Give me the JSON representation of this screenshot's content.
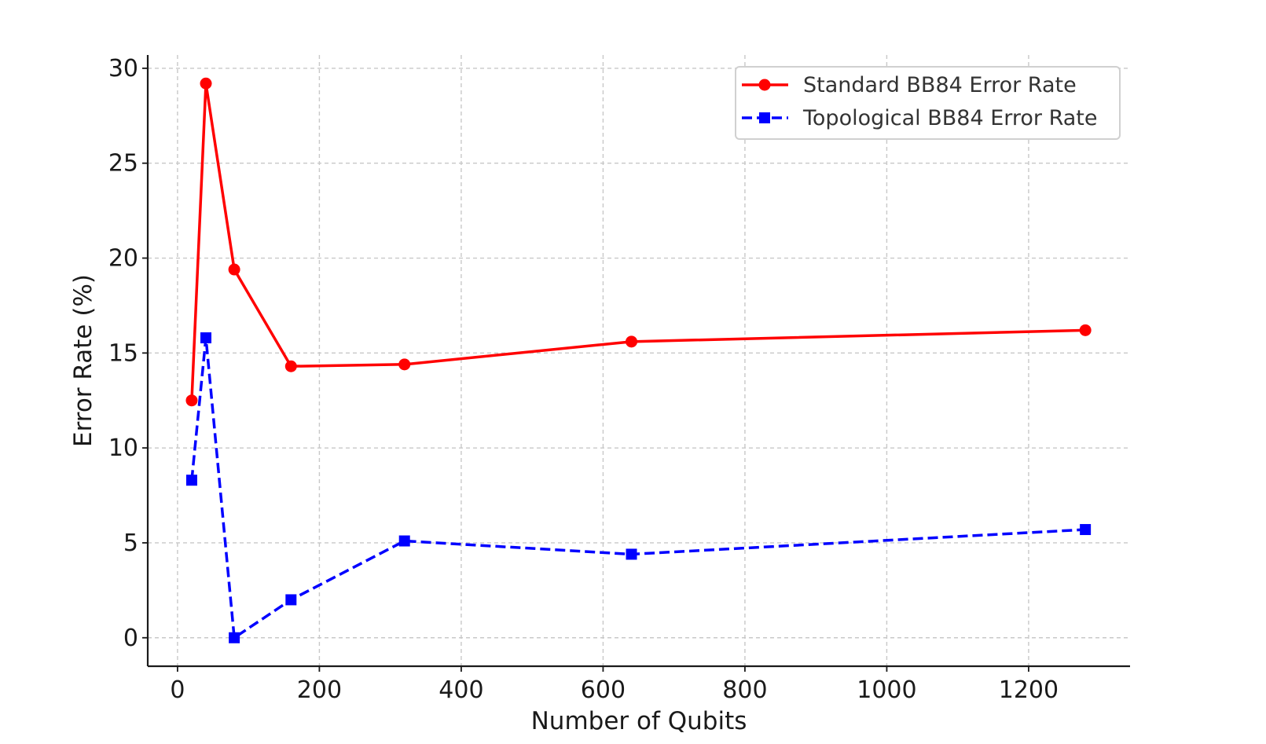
{
  "chart_data": {
    "type": "line",
    "title": "",
    "xlabel": "Number of Qubits",
    "ylabel": "Error Rate (%)",
    "xlim": [
      -42,
      1343
    ],
    "ylim": [
      -1.5,
      30.7
    ],
    "xticks": [
      0,
      200,
      400,
      600,
      800,
      1000,
      1200
    ],
    "yticks": [
      0,
      5,
      10,
      15,
      20,
      25,
      30
    ],
    "grid": true,
    "legend_position": "top-right",
    "series": [
      {
        "name": "Standard BB84 Error Rate",
        "color": "#ff0000",
        "line_style": "solid",
        "marker": "circle",
        "x": [
          20,
          40,
          80,
          160,
          320,
          640,
          1280
        ],
        "y": [
          12.5,
          29.2,
          19.4,
          14.3,
          14.4,
          15.6,
          16.2
        ]
      },
      {
        "name": "Topological BB84 Error Rate",
        "color": "#0000ff",
        "line_style": "dashed",
        "marker": "square",
        "x": [
          20,
          40,
          80,
          160,
          320,
          640,
          1280
        ],
        "y": [
          8.3,
          15.8,
          0.0,
          2.0,
          5.1,
          4.4,
          5.7
        ]
      }
    ]
  }
}
